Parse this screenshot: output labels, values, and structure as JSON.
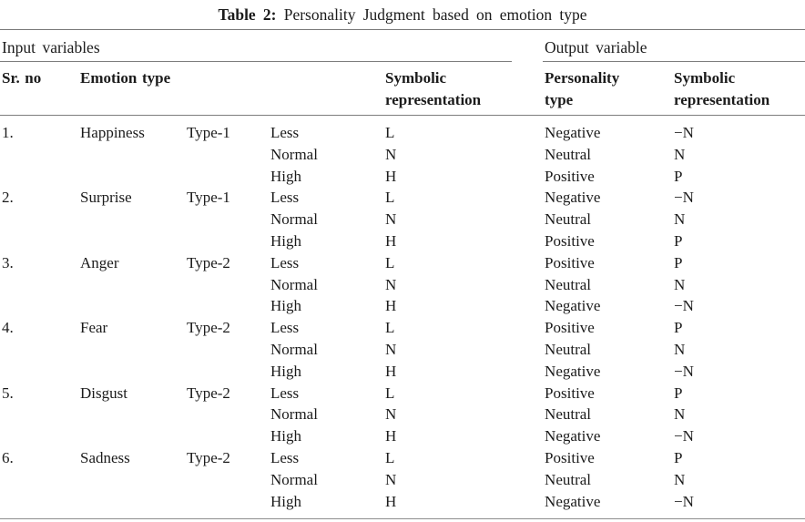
{
  "caption": {
    "label": "Table 2:",
    "text": " Personality Judgment based on emotion type"
  },
  "table": {
    "group_headers": {
      "input": "Input variables",
      "output": "Output variable"
    },
    "columns": {
      "sr_no": "Sr. no",
      "emotion_type": "Emotion type",
      "symbolic_representation_input": "Symbolic representation",
      "personality_type": "Personality type",
      "symbolic_representation_output": "Symbolic representation"
    },
    "rows": [
      {
        "sr_no": "1.",
        "emotion": "Happiness",
        "type": "Type-1",
        "levels": [
          {
            "level": "Less",
            "symbol": "L",
            "personality": "Negative",
            "personality_symbol": "−N"
          },
          {
            "level": "Normal",
            "symbol": "N",
            "personality": "Neutral",
            "personality_symbol": "N"
          },
          {
            "level": "High",
            "symbol": "H",
            "personality": "Positive",
            "personality_symbol": "P"
          }
        ]
      },
      {
        "sr_no": "2.",
        "emotion": "Surprise",
        "type": "Type-1",
        "levels": [
          {
            "level": "Less",
            "symbol": "L",
            "personality": "Negative",
            "personality_symbol": "−N"
          },
          {
            "level": "Normal",
            "symbol": "N",
            "personality": "Neutral",
            "personality_symbol": "N"
          },
          {
            "level": "High",
            "symbol": "H",
            "personality": "Positive",
            "personality_symbol": "P"
          }
        ]
      },
      {
        "sr_no": "3.",
        "emotion": "Anger",
        "type": "Type-2",
        "levels": [
          {
            "level": "Less",
            "symbol": "L",
            "personality": "Positive",
            "personality_symbol": "P"
          },
          {
            "level": "Normal",
            "symbol": "N",
            "personality": "Neutral",
            "personality_symbol": "N"
          },
          {
            "level": "High",
            "symbol": "H",
            "personality": "Negative",
            "personality_symbol": "−N"
          }
        ]
      },
      {
        "sr_no": "4.",
        "emotion": "Fear",
        "type": "Type-2",
        "levels": [
          {
            "level": "Less",
            "symbol": "L",
            "personality": "Positive",
            "personality_symbol": "P"
          },
          {
            "level": "Normal",
            "symbol": "N",
            "personality": "Neutral",
            "personality_symbol": "N"
          },
          {
            "level": "High",
            "symbol": "H",
            "personality": "Negative",
            "personality_symbol": "−N"
          }
        ]
      },
      {
        "sr_no": "5.",
        "emotion": "Disgust",
        "type": "Type-2",
        "levels": [
          {
            "level": "Less",
            "symbol": "L",
            "personality": "Positive",
            "personality_symbol": "P"
          },
          {
            "level": "Normal",
            "symbol": "N",
            "personality": "Neutral",
            "personality_symbol": "N"
          },
          {
            "level": "High",
            "symbol": "H",
            "personality": "Negative",
            "personality_symbol": "−N"
          }
        ]
      },
      {
        "sr_no": "6.",
        "emotion": "Sadness",
        "type": "Type-2",
        "levels": [
          {
            "level": "Less",
            "symbol": "L",
            "personality": "Positive",
            "personality_symbol": "P"
          },
          {
            "level": "Normal",
            "symbol": "N",
            "personality": "Neutral",
            "personality_symbol": "N"
          },
          {
            "level": "High",
            "symbol": "H",
            "personality": "Negative",
            "personality_symbol": "−N"
          }
        ]
      }
    ]
  }
}
